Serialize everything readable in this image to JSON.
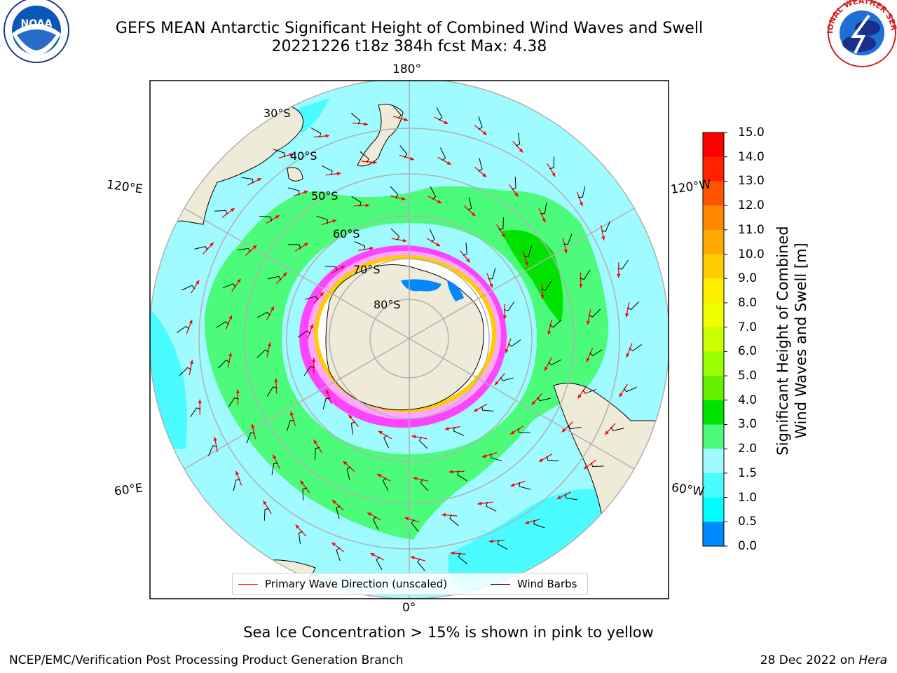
{
  "title_line1": "GEFS MEAN Antarctic Significant Height of Combined Wind Waves and Swell",
  "title_line2": "20221226 t18z 384h fcst   Max: 4.38",
  "logos": {
    "left": "NOAA",
    "right": "NATIONAL WEATHER SERVICE"
  },
  "map": {
    "projection": "south-polar-stereographic",
    "longitude_labels": {
      "top": "180°",
      "bottom": "0°",
      "upper_left": "120°E",
      "lower_left": "60°E",
      "upper_right": "120°W",
      "lower_right": "60°W"
    },
    "latitude_labels": [
      "30°S",
      "40°S",
      "50°S",
      "60°S",
      "70°S",
      "80°S"
    ],
    "colors": {
      "land": "#efebd9",
      "ocean_2_3m": "#9ffbff",
      "ocean_3_4m": "#4dfb7b",
      "ocean_4_5m": "#00e300",
      "ocean_1_5_2m": "#4afbff",
      "graticule": "#b0b0b0",
      "ice_pink": "#ff44ff",
      "arrow": "#ff0000",
      "barb": "#000000"
    },
    "legend": {
      "wave": "Primary Wave Direction (unscaled)",
      "wind": "Wind Barbs"
    }
  },
  "colorbar": {
    "label_line1": "Significant Height of Combined",
    "label_line2": "Wind Waves and Swell [m]",
    "ticks": [
      "15.0",
      "14.0",
      "13.0",
      "12.0",
      "11.0",
      "10.0",
      "9.0",
      "8.0",
      "7.0",
      "6.0",
      "5.0",
      "4.0",
      "3.0",
      "2.0",
      "1.5",
      "1.0",
      "0.5",
      "0.0"
    ],
    "colors": [
      "#ff0000",
      "#ff2200",
      "#ff5500",
      "#ff8800",
      "#ffaa00",
      "#ffcc00",
      "#ffee00",
      "#eeff00",
      "#ccff00",
      "#99ff00",
      "#66f000",
      "#00e300",
      "#4dfb7b",
      "#9ffbff",
      "#4afbff",
      "#00ffff",
      "#0088ff",
      "#0000ff"
    ]
  },
  "footer": {
    "note": "Sea Ice Concentration > 15% is shown in pink to yellow",
    "left": "NCEP/EMC/Verification Post Processing Product Generation Branch",
    "right_date": "28 Dec 2022 on ",
    "right_host": "Hera"
  }
}
